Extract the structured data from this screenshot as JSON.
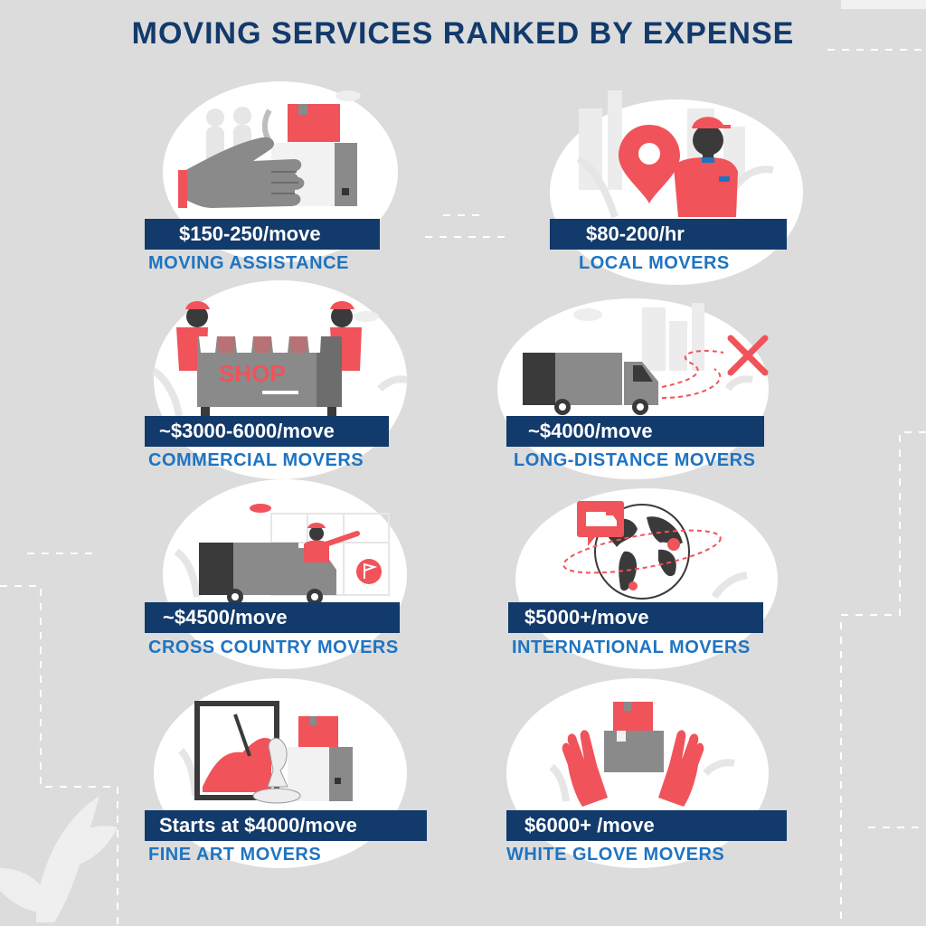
{
  "title": "MOVING SERVICES RANKED BY EXPENSE",
  "colors": {
    "background": "#dcdcdc",
    "navy": "#123a6b",
    "label_blue": "#1f74c2",
    "accent_red": "#f0535a",
    "gray": "#8a8a8a",
    "dark_gray": "#3a3a3a"
  },
  "services": [
    {
      "price": "$150-250/move",
      "name": "MOVING ASSISTANCE",
      "icon": "hand-with-boxes-icon"
    },
    {
      "price": "$80-200/hr",
      "name": "LOCAL MOVERS",
      "icon": "location-pin-mover-icon"
    },
    {
      "price": "~$3000-6000/move",
      "name": "COMMERCIAL MOVERS",
      "icon": "shop-carry-icon"
    },
    {
      "price": "~$4000/move",
      "name": "LONG-DISTANCE MOVERS",
      "icon": "moving-truck-route-icon"
    },
    {
      "price": "~$4500/move",
      "name": "CROSS COUNTRY MOVERS",
      "icon": "truck-driver-map-icon"
    },
    {
      "price": "$5000+/move",
      "name": "INTERNATIONAL MOVERS",
      "icon": "globe-truck-icon"
    },
    {
      "price": "Starts at $4000/move",
      "name": "FINE ART MOVERS",
      "icon": "painting-sculpture-icon"
    },
    {
      "price": "$6000+ /move",
      "name": "WHITE GLOVE MOVERS",
      "icon": "gloved-hands-boxes-icon"
    }
  ],
  "icon_text": {
    "shop_sign": "SHOP"
  }
}
